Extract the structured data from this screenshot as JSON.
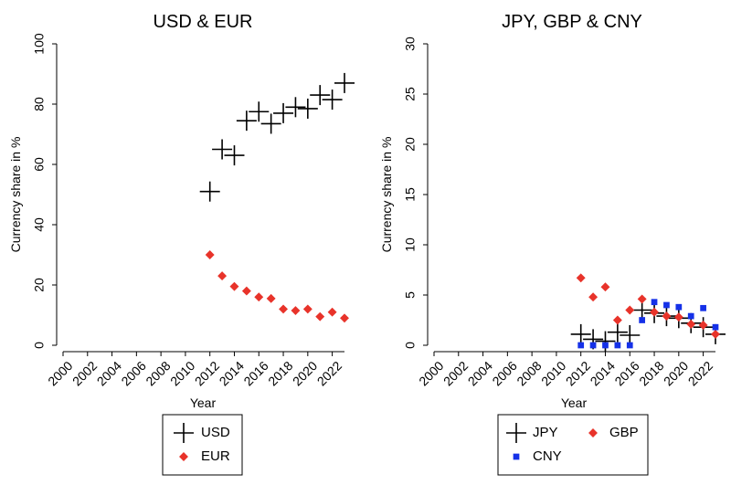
{
  "colors": {
    "usd": "#000000",
    "eur": "#e8332a",
    "jpy": "#000000",
    "gbp": "#e8332a",
    "cny": "#1531e8"
  },
  "chart_data": [
    {
      "type": "scatter",
      "title": "USD & EUR",
      "xlabel": "Year",
      "ylabel": "Currency share in %",
      "xlim": [
        2000,
        2023
      ],
      "ylim": [
        0,
        100
      ],
      "xticks": [
        "2000",
        "2002",
        "2004",
        "2006",
        "2008",
        "2010",
        "2012",
        "2014",
        "2016",
        "2018",
        "2020",
        "2022"
      ],
      "yticks": [
        "0",
        "20",
        "40",
        "60",
        "80",
        "100"
      ],
      "legend_position": "bottom",
      "series": [
        {
          "name": "USD",
          "marker": "plus",
          "x": [
            2012,
            2013,
            2014,
            2015,
            2016,
            2017,
            2018,
            2019,
            2020,
            2021,
            2022,
            2023
          ],
          "y": [
            51,
            65,
            63,
            74.5,
            77.5,
            73.5,
            77,
            79,
            78.5,
            83,
            81.5,
            87
          ]
        },
        {
          "name": "EUR",
          "marker": "diamond",
          "x": [
            2012,
            2013,
            2014,
            2015,
            2016,
            2017,
            2018,
            2019,
            2020,
            2021,
            2022,
            2023
          ],
          "y": [
            30,
            23,
            19.5,
            18,
            16,
            15.5,
            12,
            11.5,
            12,
            9.5,
            11,
            9
          ]
        }
      ]
    },
    {
      "type": "scatter",
      "title": "JPY, GBP & CNY",
      "xlabel": "Year",
      "ylabel": "Currency share in %",
      "xlim": [
        2000,
        2023
      ],
      "ylim": [
        0,
        30
      ],
      "xticks": [
        "2000",
        "2002",
        "2004",
        "2006",
        "2008",
        "2010",
        "2012",
        "2014",
        "2016",
        "2018",
        "2020",
        "2022"
      ],
      "yticks": [
        "0",
        "5",
        "10",
        "15",
        "20",
        "25",
        "30"
      ],
      "legend_position": "bottom",
      "series": [
        {
          "name": "JPY",
          "marker": "plus",
          "x": [
            2012,
            2013,
            2014,
            2015,
            2016,
            2017,
            2018,
            2019,
            2020,
            2021,
            2022,
            2023
          ],
          "y": [
            1.1,
            0.6,
            0.4,
            1.3,
            1.0,
            3.5,
            3.2,
            2.9,
            2.7,
            2.2,
            1.8,
            1.1
          ]
        },
        {
          "name": "GBP",
          "marker": "diamond",
          "x": [
            2012,
            2013,
            2014,
            2015,
            2016,
            2017,
            2018,
            2019,
            2020,
            2021,
            2022,
            2023
          ],
          "y": [
            6.7,
            4.8,
            5.8,
            2.5,
            3.5,
            4.6,
            3.3,
            2.9,
            2.8,
            2.1,
            2.0,
            1.1
          ]
        },
        {
          "name": "CNY",
          "marker": "square",
          "x": [
            2012,
            2013,
            2014,
            2015,
            2016,
            2017,
            2018,
            2019,
            2020,
            2021,
            2022,
            2023
          ],
          "y": [
            0,
            0,
            0,
            0,
            0,
            2.5,
            4.3,
            4.0,
            3.8,
            2.9,
            3.7,
            1.8
          ]
        }
      ]
    }
  ]
}
